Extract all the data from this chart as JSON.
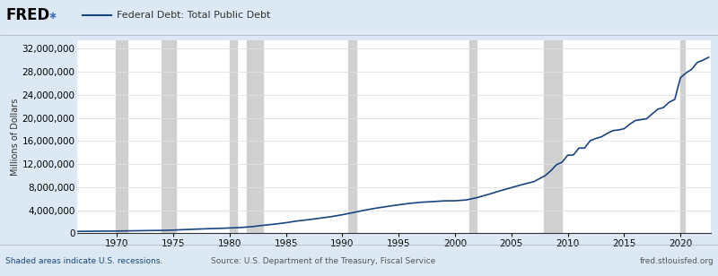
{
  "title": "Federal Debt: Total Public Debt",
  "ylabel": "Millions of Dollars",
  "line_color": "#1a4480",
  "line_width": 1.2,
  "fig_bg_color": "#dce9f5",
  "plot_bg_color": "#ffffff",
  "recession_color": "#d0d0d0",
  "recession_alpha": 1.0,
  "yticks": [
    0,
    4000000,
    8000000,
    12000000,
    16000000,
    20000000,
    24000000,
    28000000,
    32000000
  ],
  "ylim": [
    0,
    33500000
  ],
  "xlim_start": 1966.5,
  "xlim_end": 2022.7,
  "xticks": [
    1970,
    1975,
    1980,
    1985,
    1990,
    1995,
    2000,
    2005,
    2010,
    2015,
    2020
  ],
  "recessions": [
    [
      1969.917,
      1970.917
    ],
    [
      1973.917,
      1975.25
    ],
    [
      1980.0,
      1980.667
    ],
    [
      1981.5,
      1982.917
    ],
    [
      1990.5,
      1991.25
    ],
    [
      2001.25,
      2001.917
    ],
    [
      2007.917,
      2009.5
    ],
    [
      2020.0,
      2020.417
    ]
  ],
  "footer_left": "Shaded areas indicate U.S. recessions.",
  "footer_center": "Source: U.S. Department of the Treasury, Fiscal Service",
  "footer_right": "fred.stlouisfed.org",
  "legend_label": "Federal Debt: Total Public Debt",
  "data_years": [
    1966.5,
    1967.0,
    1967.5,
    1968.0,
    1968.5,
    1969.0,
    1969.5,
    1970.0,
    1970.5,
    1971.0,
    1971.5,
    1972.0,
    1972.5,
    1973.0,
    1973.5,
    1974.0,
    1974.5,
    1975.0,
    1975.5,
    1976.0,
    1976.5,
    1977.0,
    1977.5,
    1978.0,
    1978.5,
    1979.0,
    1979.5,
    1980.0,
    1980.5,
    1981.0,
    1981.5,
    1982.0,
    1982.5,
    1983.0,
    1983.5,
    1984.0,
    1984.5,
    1985.0,
    1985.5,
    1986.0,
    1986.5,
    1987.0,
    1987.5,
    1988.0,
    1988.5,
    1989.0,
    1989.5,
    1990.0,
    1990.5,
    1991.0,
    1991.5,
    1992.0,
    1992.5,
    1993.0,
    1993.5,
    1994.0,
    1994.5,
    1995.0,
    1995.5,
    1996.0,
    1996.5,
    1997.0,
    1997.5,
    1998.0,
    1998.5,
    1999.0,
    1999.5,
    2000.0,
    2000.5,
    2001.0,
    2001.5,
    2002.0,
    2002.5,
    2003.0,
    2003.5,
    2004.0,
    2004.5,
    2005.0,
    2005.5,
    2006.0,
    2006.5,
    2007.0,
    2007.5,
    2008.0,
    2008.5,
    2009.0,
    2009.5,
    2010.0,
    2010.5,
    2011.0,
    2011.5,
    2012.0,
    2012.5,
    2013.0,
    2013.5,
    2014.0,
    2014.5,
    2015.0,
    2015.5,
    2016.0,
    2016.5,
    2017.0,
    2017.5,
    2018.0,
    2018.5,
    2019.0,
    2019.5,
    2020.0,
    2020.5,
    2021.0,
    2021.5,
    2022.0,
    2022.5
  ],
  "data_values": [
    320000,
    330000,
    340000,
    350000,
    360000,
    365000,
    370000,
    381000,
    395000,
    409000,
    423000,
    437000,
    452000,
    468000,
    477000,
    486000,
    514000,
    542000,
    585000,
    629000,
    667000,
    706000,
    743000,
    780000,
    805000,
    830000,
    869000,
    909000,
    952000,
    995000,
    1068000,
    1142000,
    1260000,
    1377000,
    1475000,
    1572000,
    1697000,
    1823000,
    1974000,
    2125000,
    2237000,
    2350000,
    2476000,
    2602000,
    2735000,
    2868000,
    3037000,
    3206000,
    3403000,
    3599000,
    3800000,
    4002000,
    4177000,
    4351000,
    4497000,
    4643000,
    4792000,
    4921000,
    5052000,
    5182000,
    5276000,
    5369000,
    5424000,
    5478000,
    5542000,
    5606000,
    5617000,
    5629000,
    5699000,
    5770000,
    5984000,
    6198000,
    6479000,
    6760000,
    7057000,
    7355000,
    7630000,
    7905000,
    8178000,
    8451000,
    8700000,
    8951000,
    9468000,
    9986000,
    10825000,
    11876000,
    12311000,
    13528000,
    13562000,
    14764000,
    14764000,
    16050000,
    16433000,
    16719000,
    17300000,
    17794000,
    17900000,
    18120000,
    18900000,
    19539000,
    19700000,
    19844000,
    20700000,
    21516000,
    21800000,
    22719000,
    23200000,
    26945000,
    27800000,
    28428000,
    29617000,
    30000000,
    30500000
  ]
}
